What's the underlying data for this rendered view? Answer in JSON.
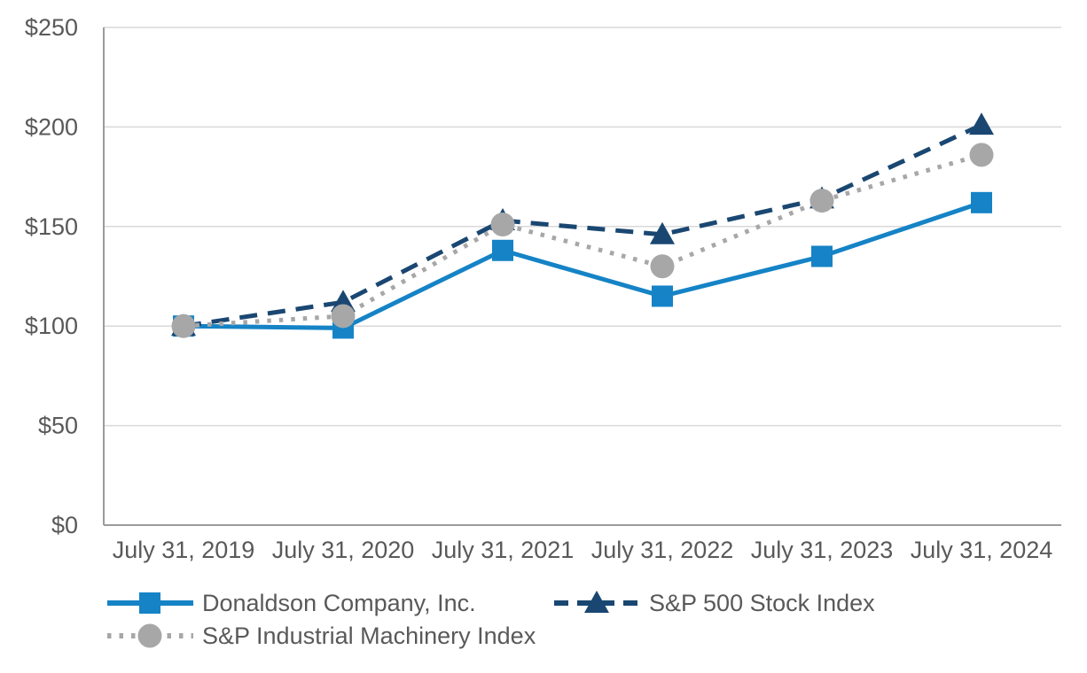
{
  "chart_data": {
    "type": "line",
    "title": "",
    "xlabel": "",
    "ylabel": "",
    "categories": [
      "July 31, 2019",
      "July 31, 2020",
      "July 31, 2021",
      "July 31, 2022",
      "July 31, 2023",
      "July 31, 2024"
    ],
    "series": [
      {
        "name": "Donaldson Company, Inc.",
        "values": [
          100,
          99,
          138,
          115,
          135,
          162
        ],
        "color": "#1583c6",
        "marker": "square",
        "line_style": "solid"
      },
      {
        "name": "S&P 500 Stock Index",
        "values": [
          100,
          112,
          153,
          146,
          164,
          201
        ],
        "color": "#1a4772",
        "marker": "triangle",
        "line_style": "dashed"
      },
      {
        "name": "S&P Industrial Machinery Index",
        "values": [
          100,
          105,
          151,
          130,
          163,
          186
        ],
        "color": "#a7a7a7",
        "marker": "circle",
        "line_style": "dotted"
      }
    ],
    "ylim": [
      0,
      250
    ],
    "y_tick_interval": 50,
    "y_tick_labels": [
      "$0",
      "$50",
      "$100",
      "$150",
      "$200",
      "$250"
    ],
    "y_tick_prefix": "$",
    "grid": "horizontal",
    "legend_position": "bottom"
  },
  "colors": {
    "gridline": "#d9d9d9",
    "axis_line": "#9b9b9b",
    "tick_text": "#595959",
    "background": "#ffffff"
  }
}
